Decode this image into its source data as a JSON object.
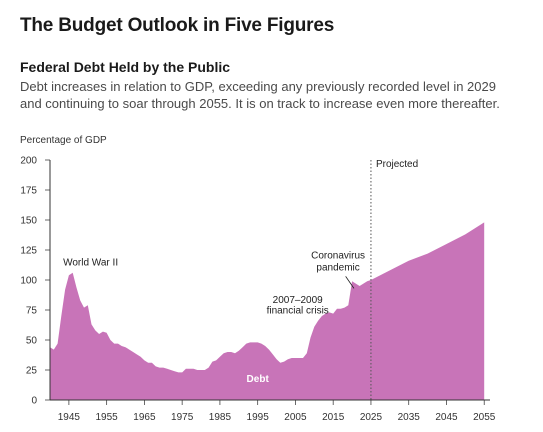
{
  "header": {
    "title": "The Budget Outlook in Five Figures"
  },
  "figure": {
    "subtitle": "Federal Debt Held by the Public",
    "description": "Debt increases in relation to GDP, exceeding any previously recorded level in 2029 and continuing to soar through 2055. It is on track to increase even more thereafter."
  },
  "chart_data": {
    "type": "area",
    "title": "Federal Debt Held by the Public",
    "ylabel": "Percentage of GDP",
    "xlabel": "",
    "xlim": [
      1940,
      2056
    ],
    "ylim": [
      0,
      200
    ],
    "y_ticks": [
      0,
      25,
      50,
      75,
      100,
      125,
      150,
      175,
      200
    ],
    "x_ticks": [
      1945,
      1955,
      1965,
      1975,
      1985,
      1995,
      2005,
      2015,
      2025,
      2035,
      2045,
      2055
    ],
    "grid": false,
    "fill_color": "#c874b8",
    "projection_start": 2025,
    "series": [
      {
        "name": "Debt",
        "x": [
          1940,
          1941,
          1942,
          1943,
          1944,
          1945,
          1946,
          1947,
          1948,
          1949,
          1950,
          1951,
          1952,
          1953,
          1954,
          1955,
          1956,
          1957,
          1958,
          1959,
          1960,
          1961,
          1962,
          1963,
          1964,
          1965,
          1966,
          1967,
          1968,
          1969,
          1970,
          1971,
          1972,
          1973,
          1974,
          1975,
          1976,
          1977,
          1978,
          1979,
          1980,
          1981,
          1982,
          1983,
          1984,
          1985,
          1986,
          1987,
          1988,
          1989,
          1990,
          1991,
          1992,
          1993,
          1994,
          1995,
          1996,
          1997,
          1998,
          1999,
          2000,
          2001,
          2002,
          2003,
          2004,
          2005,
          2006,
          2007,
          2008,
          2009,
          2010,
          2011,
          2012,
          2013,
          2014,
          2015,
          2016,
          2017,
          2018,
          2019,
          2020,
          2021,
          2022,
          2023,
          2024,
          2025,
          2030,
          2035,
          2040,
          2045,
          2050,
          2055
        ],
        "y": [
          44,
          42,
          47,
          70,
          92,
          104,
          106,
          94,
          83,
          77,
          79,
          63,
          58,
          55,
          57,
          56,
          50,
          47,
          47,
          45,
          44,
          42,
          40,
          38,
          36,
          33,
          31,
          31,
          28,
          27,
          27,
          26,
          25,
          24,
          23,
          23,
          26,
          26,
          26,
          25,
          25,
          25,
          27,
          32,
          33,
          36,
          39,
          40,
          40,
          39,
          41,
          44,
          47,
          48,
          48,
          48,
          47,
          45,
          42,
          38,
          34,
          31,
          32,
          34,
          35,
          35,
          35,
          35,
          39,
          52,
          61,
          66,
          70,
          72,
          73,
          72,
          76,
          76,
          77,
          79,
          99,
          97,
          95,
          97,
          99,
          100,
          108,
          116,
          122,
          130,
          138,
          148
        ]
      }
    ],
    "annotations": [
      {
        "text": "World War II",
        "x": 1945,
        "y": 104
      },
      {
        "text": "2007–2009 financial crisis",
        "x": 2009,
        "y": 52
      },
      {
        "text": "Coronavirus pandemic",
        "x": 2020,
        "y": 99
      },
      {
        "text": "Projected",
        "x": 2025,
        "y": 200
      },
      {
        "text": "Debt",
        "x": 1995,
        "y": 20
      }
    ],
    "labels": {
      "ww2": "World War II",
      "crisis_line1": "2007–2009",
      "crisis_line2": "financial crisis",
      "covid_line1": "Coronavirus",
      "covid_line2": "pandemic",
      "projected": "Projected",
      "area": "Debt"
    }
  }
}
